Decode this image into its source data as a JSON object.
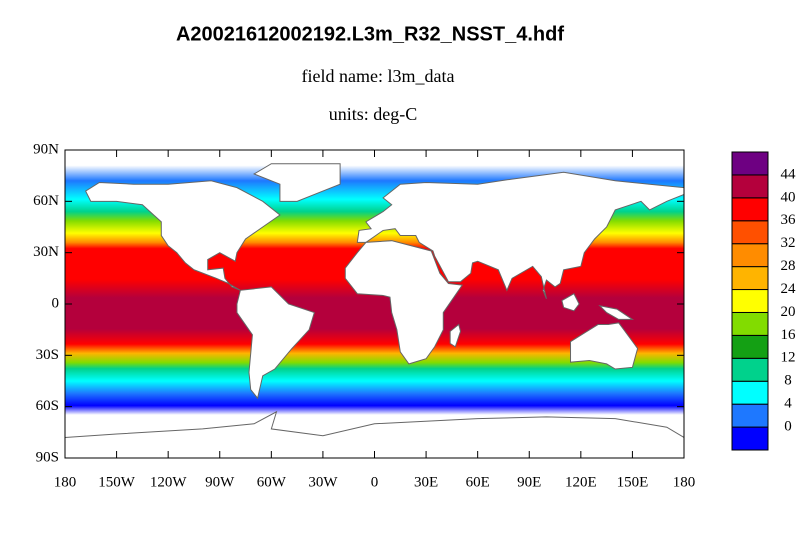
{
  "title": "A20021612002192.L3m_R32_NSST_4.hdf",
  "subtitle": "field name: l3m_data",
  "units": "units: deg-C",
  "map": {
    "xlim": [
      -180,
      180
    ],
    "ylim": [
      -90,
      90
    ],
    "xticks": [
      {
        "value": -180,
        "label": "180"
      },
      {
        "value": -150,
        "label": "150W"
      },
      {
        "value": -120,
        "label": "120W"
      },
      {
        "value": -90,
        "label": "90W"
      },
      {
        "value": -60,
        "label": "60W"
      },
      {
        "value": -30,
        "label": "30W"
      },
      0,
      {
        "value": 30,
        "label": "30E"
      },
      {
        "value": 60,
        "label": "60E"
      },
      {
        "value": 90,
        "label": "90E"
      },
      {
        "value": 120,
        "label": "120E"
      },
      {
        "value": 150,
        "label": "150E"
      },
      {
        "value": 180,
        "label": "180"
      }
    ],
    "yticks": [
      {
        "value": 90,
        "label": "90N"
      },
      {
        "value": 60,
        "label": "60N"
      },
      {
        "value": 30,
        "label": "30N"
      },
      0,
      {
        "value": -30,
        "label": "30S"
      },
      {
        "value": -60,
        "label": "60S"
      },
      {
        "value": -90,
        "label": "90S"
      }
    ]
  },
  "colorbar": {
    "levels": [
      0,
      4,
      8,
      12,
      16,
      20,
      24,
      28,
      32,
      36,
      40,
      44
    ],
    "colors": [
      "#0000ff",
      "#1e78ff",
      "#00ffff",
      "#00d28c",
      "#14a014",
      "#82dc00",
      "#ffff00",
      "#ffb400",
      "#ff8c00",
      "#ff5000",
      "#ff0000",
      "#b4003c",
      "#6e0082"
    ]
  }
}
